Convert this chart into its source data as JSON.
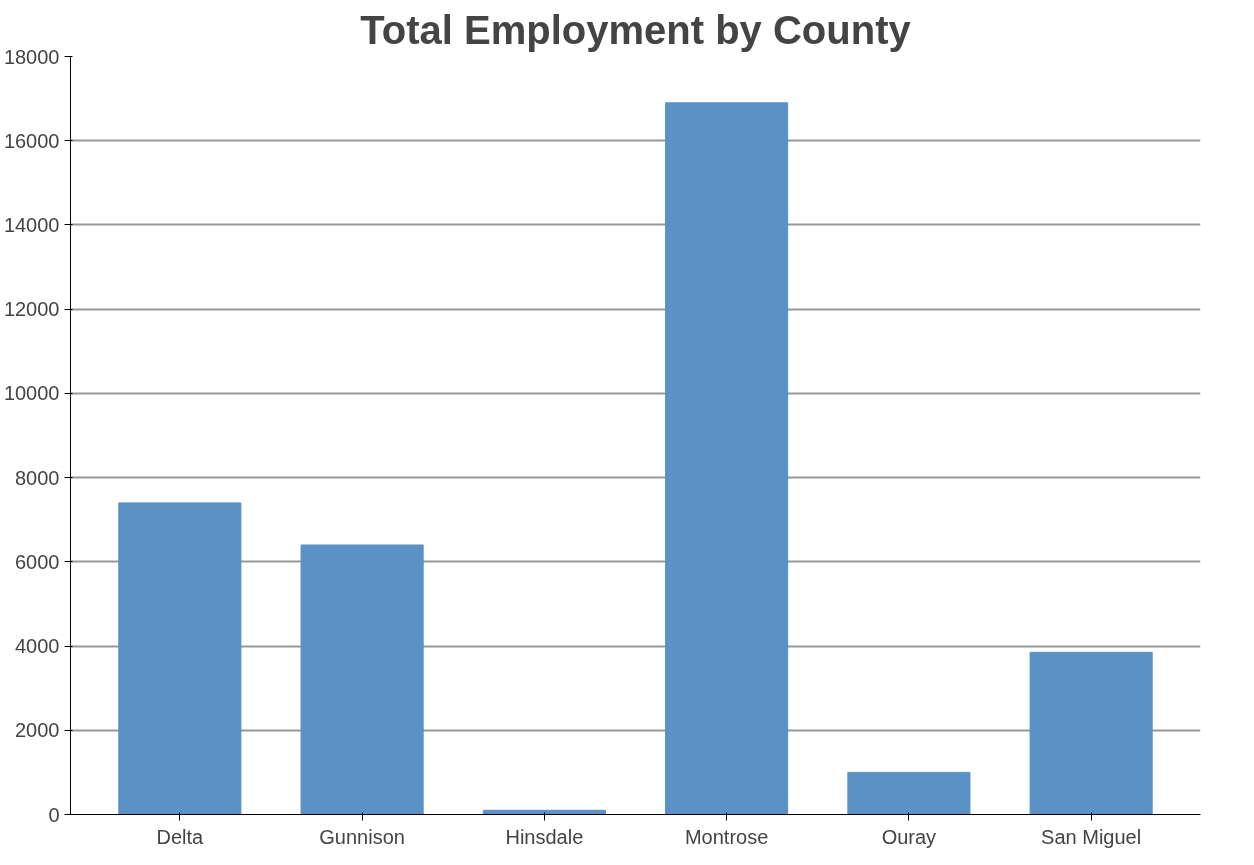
{
  "chart_data": {
    "type": "bar",
    "title": "Total Employment by County",
    "categories": [
      "Delta",
      "Gunnison",
      "Hinsdale",
      "Montrose",
      "Ouray",
      "San Miguel"
    ],
    "values": [
      7400,
      6400,
      100,
      16900,
      1000,
      3850
    ],
    "color": "#5b91c5",
    "ylim": [
      0,
      18000
    ],
    "yticks": [
      0,
      2000,
      4000,
      6000,
      8000,
      10000,
      12000,
      14000,
      16000,
      18000
    ],
    "grid": "y"
  }
}
